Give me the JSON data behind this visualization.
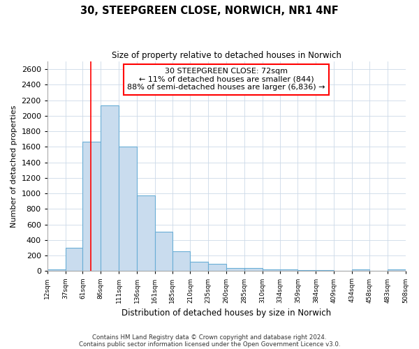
{
  "title": "30, STEEPGREEN CLOSE, NORWICH, NR1 4NF",
  "subtitle": "Size of property relative to detached houses in Norwich",
  "xlabel": "Distribution of detached houses by size in Norwich",
  "ylabel": "Number of detached properties",
  "footnote1": "Contains HM Land Registry data © Crown copyright and database right 2024.",
  "footnote2": "Contains public sector information licensed under the Open Government Licence v3.0.",
  "annotation_line1": "30 STEEPGREEN CLOSE: 72sqm",
  "annotation_line2": "← 11% of detached houses are smaller (844)",
  "annotation_line3": "88% of semi-detached houses are larger (6,836) →",
  "bar_color": "#c9dcee",
  "bar_edge_color": "#6aaed6",
  "red_line_x": 72,
  "ylim": [
    0,
    2700
  ],
  "yticks": [
    0,
    200,
    400,
    600,
    800,
    1000,
    1200,
    1400,
    1600,
    1800,
    2000,
    2200,
    2400,
    2600
  ],
  "bin_edges": [
    12,
    37,
    61,
    86,
    111,
    136,
    161,
    185,
    210,
    235,
    260,
    285,
    310,
    334,
    359,
    384,
    409,
    434,
    458,
    483,
    508
  ],
  "bin_labels": [
    "12sqm",
    "37sqm",
    "61sqm",
    "86sqm",
    "111sqm",
    "136sqm",
    "161sqm",
    "185sqm",
    "210sqm",
    "235sqm",
    "260sqm",
    "285sqm",
    "310sqm",
    "334sqm",
    "359sqm",
    "384sqm",
    "409sqm",
    "434sqm",
    "458sqm",
    "483sqm",
    "508sqm"
  ],
  "bar_heights": [
    20,
    295,
    1670,
    2130,
    1600,
    970,
    505,
    250,
    120,
    95,
    40,
    35,
    20,
    18,
    10,
    8,
    5,
    18,
    5,
    20
  ],
  "background_color": "#ffffff",
  "grid_color": "#ccd9e8"
}
